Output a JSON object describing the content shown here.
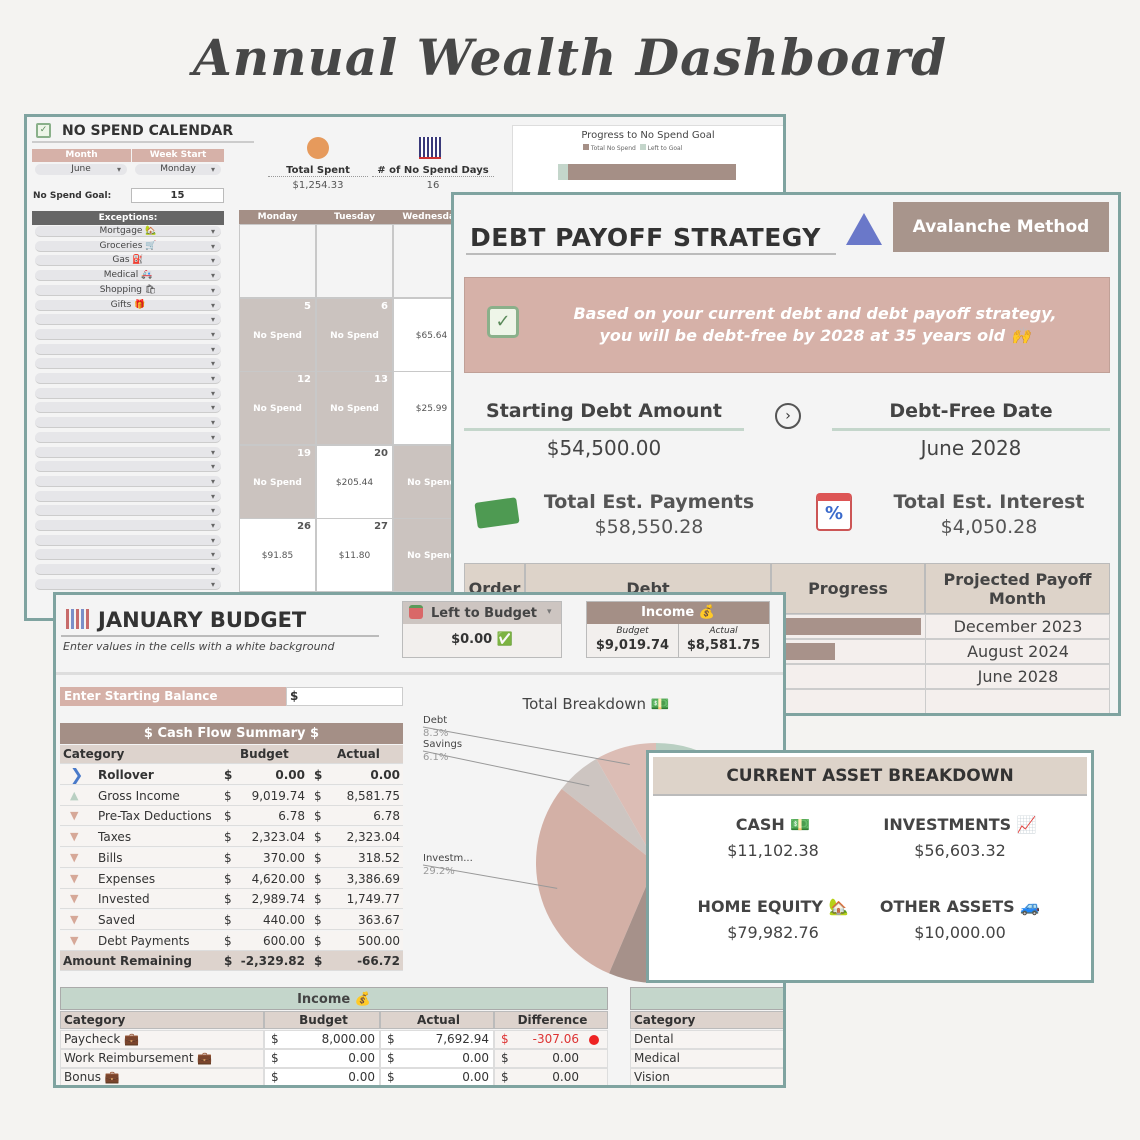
{
  "title": "Annual Wealth Dashboard",
  "colors": {
    "frame": "#7fa3a0",
    "brown": "#a48f86",
    "pink": "#d6b1a8",
    "green": "#c4d6cb",
    "taupe": "#ddd3cd"
  },
  "nospend": {
    "title": "NO SPEND CALENDAR",
    "icon": "calendar-check-icon",
    "month_label": "Month",
    "week_label": "Week Start",
    "month": "June",
    "week_start": "Monday",
    "goal_label": "No Spend Goal:",
    "goal": "15",
    "exceptions_label": "Exceptions:",
    "exceptions": [
      "Mortgage 🏡",
      "Groceries 🛒",
      "Gas ⛽",
      "Medical 🚑",
      "Shopping 🛍",
      "Gifts 🎁"
    ],
    "empty_exception_rows": 19,
    "total_spent_label": "Total Spent",
    "total_spent": "$1,254.33",
    "days_label": "# of No Spend Days",
    "days": "16",
    "chart": {
      "title": "Progress to No Spend Goal",
      "legend": [
        "Total No Spend",
        "Left to Goal"
      ],
      "total_no_spend": 16,
      "goal": 15
    },
    "days_header": [
      "Monday",
      "Tuesday",
      "Wednesday"
    ],
    "cells": [
      [
        {
          "n": "",
          "v": "",
          "t": "e"
        },
        {
          "n": "",
          "v": "",
          "t": "e"
        },
        {
          "n": "",
          "v": "",
          "t": "e"
        }
      ],
      [
        {
          "n": "5",
          "v": "No Spend",
          "t": "ns"
        },
        {
          "n": "6",
          "v": "No Spend",
          "t": "ns"
        },
        {
          "n": "",
          "v": "$65.64",
          "t": "w"
        }
      ],
      [
        {
          "n": "12",
          "v": "No Spend",
          "t": "ns"
        },
        {
          "n": "13",
          "v": "No Spend",
          "t": "ns"
        },
        {
          "n": "",
          "v": "$25.99",
          "t": "w"
        }
      ],
      [
        {
          "n": "19",
          "v": "No Spend",
          "t": "ns"
        },
        {
          "n": "20",
          "v": "$205.44",
          "t": "w"
        },
        {
          "n": "",
          "v": "No Spend",
          "t": "ns"
        }
      ],
      [
        {
          "n": "26",
          "v": "$91.85",
          "t": "w"
        },
        {
          "n": "27",
          "v": "$11.80",
          "t": "w"
        },
        {
          "n": "",
          "v": "No Spend",
          "t": "ns"
        }
      ]
    ]
  },
  "debt": {
    "title": "DEBT PAYOFF STRATEGY",
    "method": "Avalanche Method",
    "banner_line1": "Based on your current debt and debt payoff strategy,",
    "banner_line2": "you will be debt-free by 2028 at 35 years old 🙌",
    "starting_label": "Starting Debt Amount",
    "starting": "$54,500.00",
    "free_label": "Debt-Free Date",
    "free": "June 2028",
    "payments_label": "Total Est. Payments",
    "payments": "$58,550.28",
    "interest_label": "Total Est. Interest",
    "interest": "$4,050.28",
    "columns": [
      "Order",
      "Debt",
      "Progress",
      "Projected Payoff Month"
    ],
    "rows": [
      {
        "progress": 0.97,
        "month": "December 2023"
      },
      {
        "progress": 0.4,
        "month": "August 2024"
      },
      {
        "progress": 0,
        "month": "June 2028"
      },
      {
        "progress": 0,
        "month": ""
      }
    ]
  },
  "budget": {
    "title": "JANUARY BUDGET",
    "subtitle": "Enter values in the cells with a white background",
    "left_label": "Left to Budget",
    "left_value": "$0.00 ✅",
    "income_label": "Income 💰",
    "income_budget_label": "Budget",
    "income_actual_label": "Actual",
    "income_budget": "$9,019.74",
    "income_actual": "$8,581.75",
    "start_label": "Enter Starting Balance",
    "start_currency": "$",
    "cashflow_title": "$ Cash Flow Summary $",
    "cf_columns": [
      "Category",
      "Budget",
      "Actual"
    ],
    "cf_rows": [
      {
        "icon": "chevron-right-icon",
        "cat": "Rollover",
        "b": "0.00",
        "a": "0.00",
        "bold": true
      },
      {
        "icon": "triangle-up-icon",
        "cat": "Gross Income",
        "b": "9,019.74",
        "a": "8,581.75"
      },
      {
        "icon": "triangle-down-icon",
        "cat": "Pre-Tax Deductions",
        "b": "6.78",
        "a": "6.78"
      },
      {
        "icon": "triangle-down-icon",
        "cat": "Taxes",
        "b": "2,323.04",
        "a": "2,323.04"
      },
      {
        "icon": "triangle-down-icon",
        "cat": "Bills",
        "b": "370.00",
        "a": "318.52"
      },
      {
        "icon": "triangle-down-icon",
        "cat": "Expenses",
        "b": "4,620.00",
        "a": "3,386.69"
      },
      {
        "icon": "triangle-down-icon",
        "cat": "Invested",
        "b": "2,989.74",
        "a": "1,749.77"
      },
      {
        "icon": "triangle-down-icon",
        "cat": "Saved",
        "b": "440.00",
        "a": "363.67"
      },
      {
        "icon": "triangle-down-icon",
        "cat": "Debt Payments",
        "b": "600.00",
        "a": "500.00"
      }
    ],
    "cf_total": {
      "cat": "Amount Remaining",
      "b": "-2,329.82",
      "a": "-66.72"
    },
    "income_table": {
      "title": "Income 💰",
      "columns": [
        "Category",
        "Budget",
        "Actual",
        "Difference"
      ],
      "rows": [
        {
          "cat": "Paycheck 💼",
          "b": "8,000.00",
          "a": "7,692.94",
          "d": "-307.06",
          "neg": true
        },
        {
          "cat": "Work Reimbursement 💼",
          "b": "0.00",
          "a": "0.00",
          "d": "0.00"
        },
        {
          "cat": "Bonus 💼",
          "b": "0.00",
          "a": "0.00",
          "d": "0.00"
        }
      ]
    },
    "side_table": {
      "column": "Category",
      "rows": [
        "Dental",
        "Medical",
        "Vision"
      ]
    }
  },
  "chart_data": {
    "type": "pie",
    "title": "Total Breakdown 💵",
    "slices": [
      {
        "label": "Debt",
        "value": 8.3,
        "color": "#dcbdb5"
      },
      {
        "label": "Savings",
        "value": 6.1,
        "color": "#cdc5c1"
      },
      {
        "label": "Investm...",
        "value": 29.2,
        "color": "#d3b0a6"
      },
      {
        "label": "",
        "value": 19.0,
        "color": "#a6918a"
      },
      {
        "label": "",
        "value": 37.4,
        "color": "#b9cfc2"
      }
    ]
  },
  "assets": {
    "title": "CURRENT ASSET BREAKDOWN",
    "items": [
      {
        "label": "CASH 💵",
        "value": "$11,102.38"
      },
      {
        "label": "INVESTMENTS 📈",
        "value": "$56,603.32"
      },
      {
        "label": "HOME EQUITY 🏡",
        "value": "$79,982.76"
      },
      {
        "label": "OTHER ASSETS 🚙",
        "value": "$10,000.00"
      }
    ]
  }
}
